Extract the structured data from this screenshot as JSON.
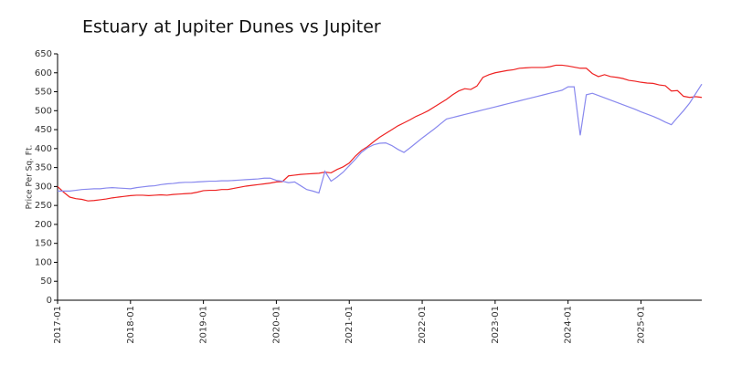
{
  "chart_data": {
    "type": "line",
    "title": "Estuary at Jupiter Dunes vs Jupiter",
    "y_label": "Price Per Sq. Ft.",
    "x": [
      "2017-01",
      "2017-02",
      "2017-03",
      "2017-04",
      "2017-05",
      "2017-06",
      "2017-07",
      "2017-08",
      "2017-09",
      "2017-10",
      "2017-11",
      "2017-12",
      "2018-01",
      "2018-02",
      "2018-03",
      "2018-04",
      "2018-05",
      "2018-06",
      "2018-07",
      "2018-08",
      "2018-09",
      "2018-10",
      "2018-11",
      "2018-12",
      "2019-01",
      "2019-02",
      "2019-03",
      "2019-04",
      "2019-05",
      "2019-06",
      "2019-07",
      "2019-08",
      "2019-09",
      "2019-10",
      "2019-11",
      "2019-12",
      "2020-01",
      "2020-02",
      "2020-03",
      "2020-04",
      "2020-05",
      "2020-06",
      "2020-07",
      "2020-08",
      "2020-09",
      "2020-10",
      "2020-11",
      "2020-12",
      "2021-01",
      "2021-02",
      "2021-03",
      "2021-04",
      "2021-05",
      "2021-06",
      "2021-07",
      "2021-08",
      "2021-09",
      "2021-10",
      "2021-11",
      "2021-12",
      "2022-01",
      "2022-02",
      "2022-03",
      "2022-04",
      "2022-05",
      "2022-06",
      "2022-07",
      "2022-08",
      "2022-09",
      "2022-10",
      "2022-11",
      "2022-12",
      "2023-01",
      "2023-02",
      "2023-03",
      "2023-04",
      "2023-05",
      "2023-06",
      "2023-07",
      "2023-08",
      "2023-09",
      "2023-10",
      "2023-11",
      "2023-12",
      "2024-01",
      "2024-02",
      "2024-03",
      "2024-04",
      "2024-05",
      "2024-06",
      "2024-07",
      "2024-08",
      "2024-09",
      "2024-10",
      "2024-11",
      "2024-12",
      "2025-01",
      "2025-02",
      "2025-03",
      "2025-04",
      "2025-05",
      "2025-06",
      "2025-07",
      "2025-08",
      "2025-09",
      "2025-10",
      "2025-11"
    ],
    "series": [
      {
        "color": "#ee2222",
        "values": [
          300,
          285,
          272,
          268,
          266,
          262,
          263,
          265,
          267,
          270,
          272,
          274,
          276,
          277,
          277,
          276,
          277,
          278,
          277,
          279,
          280,
          281,
          282,
          285,
          289,
          290,
          290,
          292,
          292,
          295,
          298,
          301,
          303,
          305,
          307,
          309,
          312,
          313,
          328,
          330,
          332,
          333,
          334,
          335,
          338,
          336,
          345,
          352,
          362,
          380,
          395,
          405,
          418,
          430,
          440,
          450,
          460,
          468,
          476,
          485,
          492,
          500,
          510,
          520,
          530,
          542,
          552,
          558,
          556,
          565,
          588,
          595,
          600,
          603,
          606,
          608,
          612,
          613,
          614,
          614,
          614,
          616,
          620,
          620,
          618,
          615,
          612,
          612,
          598,
          590,
          595,
          590,
          588,
          585,
          580,
          578,
          575,
          573,
          572,
          568,
          566,
          552,
          553,
          538,
          535,
          537,
          535
        ]
      },
      {
        "color": "#8888ee",
        "values": [
          288,
          288,
          288,
          290,
          292,
          293,
          294,
          294,
          296,
          297,
          296,
          295,
          294,
          297,
          299,
          301,
          302,
          305,
          307,
          308,
          310,
          311,
          311,
          312,
          313,
          314,
          314,
          315,
          315,
          316,
          317,
          318,
          319,
          320,
          322,
          322,
          316,
          314,
          310,
          312,
          302,
          292,
          288,
          283,
          340,
          314,
          325,
          338,
          355,
          372,
          390,
          402,
          410,
          414,
          415,
          408,
          398,
          390,
          402,
          415,
          428,
          440,
          452,
          465,
          478,
          482,
          486,
          490,
          494,
          498,
          502,
          506,
          510,
          514,
          518,
          522,
          526,
          530,
          534,
          538,
          542,
          546,
          550,
          554,
          563,
          563,
          435,
          542,
          546,
          540,
          534,
          528,
          522,
          516,
          510,
          504,
          497,
          491,
          485,
          478,
          470,
          463,
          482,
          500,
          520,
          545,
          570
        ]
      }
    ],
    "xlim": [
      "2017-01",
      "2025-11"
    ],
    "xticks": [
      "2017-01",
      "2018-01",
      "2019-01",
      "2020-01",
      "2021-01",
      "2022-01",
      "2023-01",
      "2024-01",
      "2025-01"
    ],
    "ylim": [
      0,
      650
    ],
    "yticks": [
      0,
      50,
      100,
      150,
      200,
      250,
      300,
      350,
      400,
      450,
      500,
      550,
      600,
      650
    ]
  }
}
